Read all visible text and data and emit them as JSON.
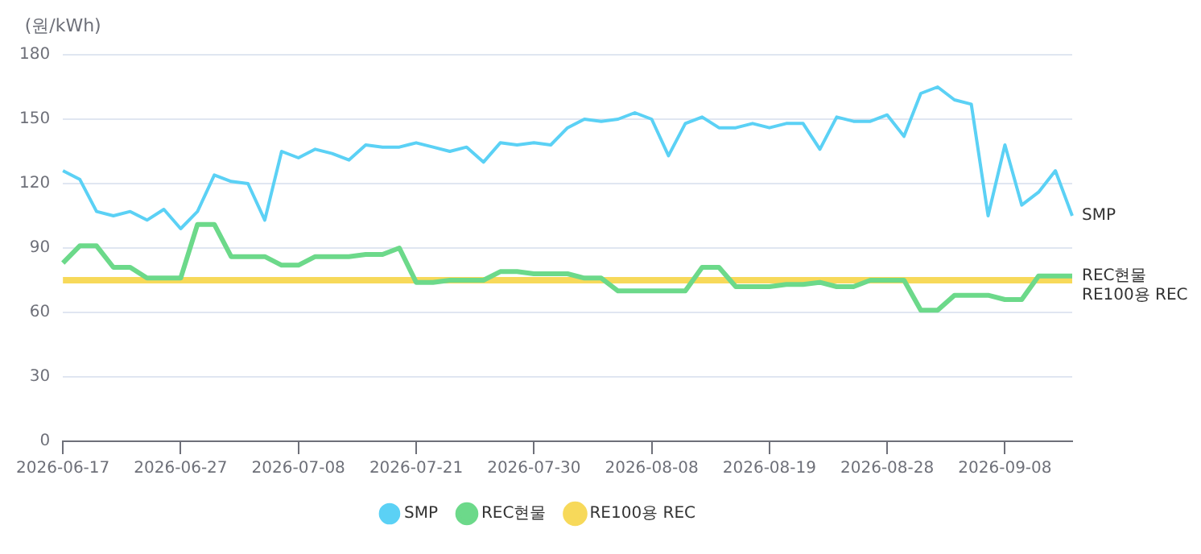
{
  "chart_data": {
    "type": "line",
    "ylabel": "(원/kWh)",
    "categories": [
      "2026-06-17",
      null,
      null,
      null,
      null,
      null,
      null,
      "2026-06-27",
      null,
      null,
      null,
      null,
      null,
      null,
      "2026-07-08",
      null,
      null,
      null,
      null,
      null,
      null,
      "2026-07-21",
      null,
      null,
      null,
      null,
      null,
      null,
      "2026-07-30",
      null,
      null,
      null,
      null,
      null,
      null,
      "2026-08-08",
      null,
      null,
      null,
      null,
      null,
      null,
      "2026-08-19",
      null,
      null,
      null,
      null,
      null,
      null,
      "2026-08-28",
      null,
      null,
      null,
      null,
      null,
      null,
      "2026-09-08",
      null,
      null,
      null,
      null
    ],
    "series": [
      {
        "name": "SMP",
        "color": "#5bd1f5",
        "values": [
          126,
          122,
          107,
          105,
          107,
          103,
          108,
          99,
          107,
          124,
          121,
          120,
          103,
          135,
          132,
          136,
          134,
          131,
          138,
          137,
          137,
          139,
          137,
          135,
          137,
          130,
          139,
          138,
          139,
          138,
          146,
          150,
          149,
          150,
          153,
          150,
          133,
          148,
          151,
          146,
          146,
          148,
          146,
          148,
          148,
          136,
          151,
          149,
          149,
          152,
          142,
          162,
          165,
          159,
          157,
          105,
          138,
          110,
          116,
          126,
          105
        ]
      },
      {
        "name": "REC현물",
        "color": "#6cd98a",
        "values": [
          83,
          91,
          91,
          81,
          81,
          76,
          76,
          76,
          101,
          101,
          86,
          86,
          86,
          82,
          82,
          86,
          86,
          86,
          87,
          87,
          90,
          74,
          74,
          75,
          75,
          75,
          79,
          79,
          78,
          78,
          78,
          76,
          76,
          70,
          70,
          70,
          70,
          70,
          81,
          81,
          72,
          72,
          72,
          73,
          73,
          74,
          72,
          72,
          75,
          75,
          75,
          61,
          61,
          68,
          68,
          68,
          66,
          66,
          77,
          77,
          77
        ]
      },
      {
        "name": "RE100용 REC",
        "color": "#f7d95a",
        "values": [
          75,
          75,
          75,
          75,
          75,
          75,
          75,
          75,
          75,
          75,
          75,
          75,
          75,
          75,
          75,
          75,
          75,
          75,
          75,
          75,
          75,
          75,
          75,
          75,
          75,
          75,
          75,
          75,
          75,
          75,
          75,
          75,
          75,
          75,
          75,
          75,
          75,
          75,
          75,
          75,
          75,
          75,
          75,
          75,
          75,
          75,
          75,
          75,
          75,
          75,
          75,
          75,
          75,
          75,
          75,
          75,
          75,
          75,
          75,
          75,
          75
        ]
      }
    ],
    "ylim": [
      0,
      180
    ],
    "yticks": [
      0,
      30,
      60,
      90,
      120,
      150,
      180
    ],
    "grid": "y",
    "legend": "bottom",
    "marker": "none",
    "line_style": "solid"
  }
}
